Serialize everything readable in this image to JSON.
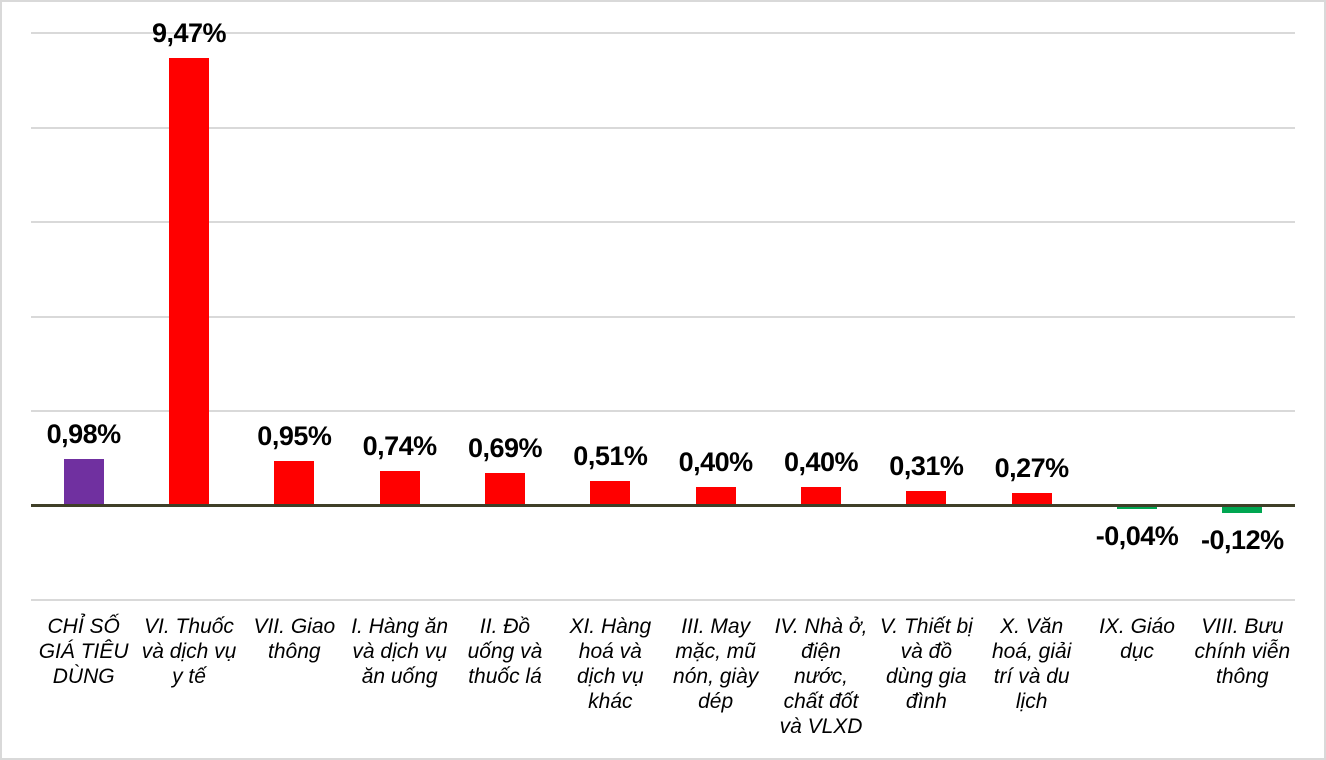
{
  "chart_data": {
    "type": "bar",
    "title": "",
    "xlabel": "",
    "ylabel": "",
    "unit": "%",
    "number_format": "comma-decimal",
    "ylim": [
      -2,
      10
    ],
    "gridline_values": [
      10,
      8,
      6,
      4,
      2,
      -2
    ],
    "grid_on": true,
    "legend_position": "none",
    "categories": [
      "CHỈ SỐ GIÁ TIÊU DÙNG",
      "VI. Thuốc và dịch vụ y tế",
      "VII. Giao thông",
      "I. Hàng ăn và dịch vụ ăn uống",
      "II. Đồ uống và thuốc lá",
      "XI. Hàng hoá và dịch vụ khác",
      "III. May mặc, mũ nón, giày dép",
      "IV. Nhà ở, điện nước, chất đốt và VLXD",
      "V. Thiết bị và đồ dùng gia đình",
      "X. Văn hoá, giải trí và du lịch",
      "IX. Giáo dục",
      "VIII. Bưu chính viễn thông"
    ],
    "category_label_lines": [
      [
        "CHỈ SỐ",
        "GIÁ TIÊU",
        "DÙNG"
      ],
      [
        "VI. Thuốc",
        "và dịch vụ",
        "y tế"
      ],
      [
        "VII. Giao",
        "thông"
      ],
      [
        "I. Hàng ăn",
        "và dịch vụ",
        "ăn uống"
      ],
      [
        "II. Đồ",
        "uống và",
        "thuốc lá"
      ],
      [
        "XI. Hàng",
        "hoá và",
        "dịch vụ",
        "khác"
      ],
      [
        "III. May",
        "mặc, mũ",
        "nón, giày",
        "dép"
      ],
      [
        "IV. Nhà ở,",
        "điện",
        "nước,",
        "chất đốt",
        "và VLXD"
      ],
      [
        "V. Thiết bị",
        "và đồ",
        "dùng gia",
        "đình"
      ],
      [
        "X. Văn",
        "hoá, giải",
        "trí và du",
        "lịch"
      ],
      [
        "IX. Giáo",
        "dục"
      ],
      [
        "VIII. Bưu",
        "chính viễn",
        "thông"
      ]
    ],
    "values": [
      0.98,
      9.47,
      0.95,
      0.74,
      0.69,
      0.51,
      0.4,
      0.4,
      0.31,
      0.27,
      -0.04,
      -0.12
    ],
    "value_labels": [
      "0,98%",
      "9,47%",
      "0,95%",
      "0,74%",
      "0,69%",
      "0,51%",
      "0,40%",
      "0,40%",
      "0,31%",
      "0,27%",
      "-0,04%",
      "-0,12%"
    ],
    "bar_colors": [
      "#7030A0",
      "#FF0000",
      "#FF0000",
      "#FF0000",
      "#FF0000",
      "#FF0000",
      "#FF0000",
      "#FF0000",
      "#FF0000",
      "#FF0000",
      "#00A651",
      "#00A651"
    ],
    "colors": {
      "cpi_total_bar": "#7030A0",
      "increase_bar": "#FF0000",
      "decrease_bar": "#00A651",
      "axis_line": "#3F3F28",
      "gridline": "#D9D9D9",
      "label_text": "#000000",
      "frame_border": "#D9D9D9"
    }
  }
}
